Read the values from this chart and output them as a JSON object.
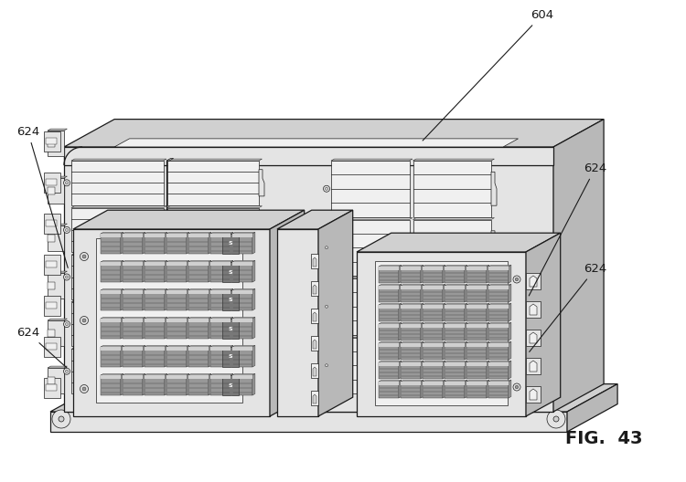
{
  "bg_color": "#ffffff",
  "line_color": "#1a1a1a",
  "fill_white": "#ffffff",
  "fill_vlight": "#f0f0f0",
  "fill_light": "#e4e4e4",
  "fill_mid": "#d0d0d0",
  "fill_dark": "#b8b8b8",
  "fill_darker": "#989898",
  "fill_darkest": "#787878",
  "fill_connector": "#606060",
  "fill_connector2": "#808080",
  "annotation_604": "604",
  "annotation_624": "624",
  "fig_label": "FIG.  43",
  "fig_label_fontsize": 14,
  "annotation_fontsize": 9.5,
  "lw_main": 0.9,
  "lw_thin": 0.5,
  "lw_thick": 1.2
}
